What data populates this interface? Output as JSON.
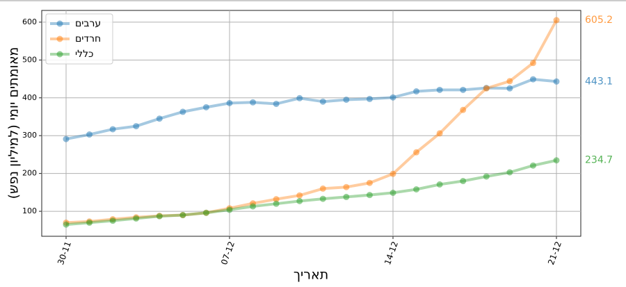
{
  "chart_data": {
    "type": "line",
    "ylabel": "מאומתים יומי (למיליון נפש)",
    "xlabel": "תאריך",
    "categories": [
      "30-11",
      null,
      null,
      null,
      null,
      null,
      null,
      "07-12",
      null,
      null,
      null,
      null,
      null,
      null,
      "14-12",
      null,
      null,
      null,
      null,
      null,
      null,
      "21-12"
    ],
    "series": [
      {
        "name": "ערבים",
        "color": "#1f77b4",
        "values": [
          291,
          303,
          317,
          325,
          345,
          363,
          375,
          386,
          388,
          384,
          399,
          390,
          395,
          397,
          401,
          417,
          421,
          421,
          426,
          425,
          449,
          443.1
        ]
      },
      {
        "name": "חרדים",
        "color": "#ff7f0e",
        "values": [
          70,
          73,
          79,
          84,
          88,
          90,
          96,
          108,
          121,
          132,
          142,
          160,
          164,
          175,
          199,
          256,
          306,
          368,
          425,
          444,
          492,
          605.2
        ]
      },
      {
        "name": "כללי",
        "color": "#2ca02c",
        "values": [
          65,
          70,
          75,
          81,
          87,
          90,
          96,
          104,
          113,
          120,
          127,
          133,
          138,
          143,
          149,
          158,
          171,
          180,
          192,
          203,
          221,
          234.7
        ]
      }
    ],
    "ylim": [
      34,
      631
    ],
    "yticks": [
      100,
      200,
      300,
      400,
      500,
      600
    ],
    "grid": true,
    "legend": "upper-left"
  }
}
